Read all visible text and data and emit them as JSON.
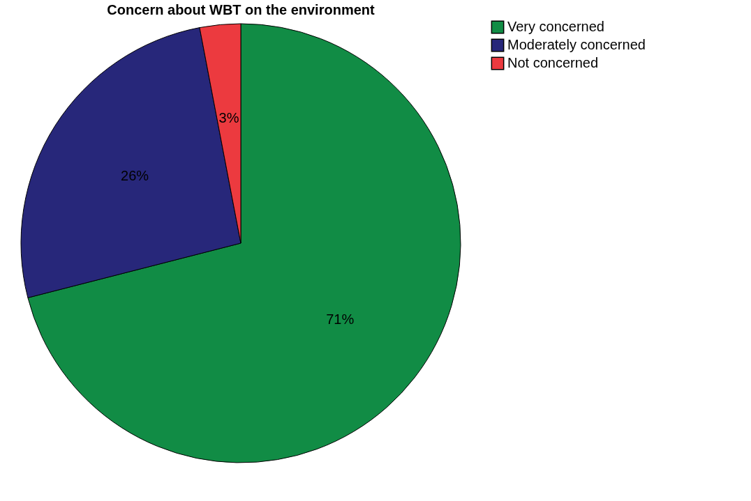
{
  "chart_data": {
    "type": "pie",
    "title": "Concern about WBT on the environment",
    "categories": [
      "Very concerned",
      "Moderately concerned",
      "Not concerned"
    ],
    "values": [
      71,
      26,
      3
    ],
    "colors": [
      "#118c45",
      "#27277a",
      "#ec3a3f"
    ],
    "value_labels": [
      "71%",
      "26%",
      "3%"
    ],
    "legend": "right"
  }
}
